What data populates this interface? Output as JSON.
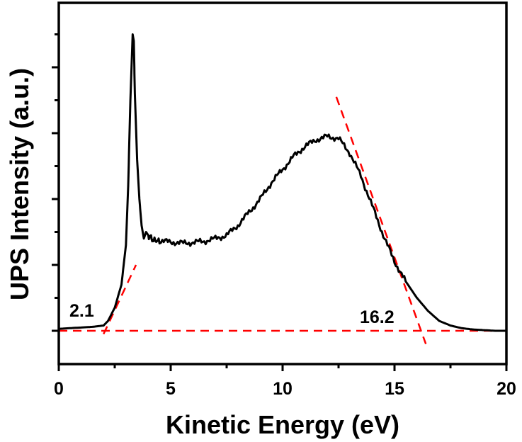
{
  "chart_data": {
    "type": "line",
    "title": "",
    "xlabel": "Kinetic Energy (eV)",
    "ylabel": "UPS Intensity (a.u.)",
    "xlim": [
      0,
      20
    ],
    "ylim": [
      -0.5,
      4.9
    ],
    "x_ticks": [
      0,
      5,
      10,
      15,
      20
    ],
    "x_tick_labels": [
      "0",
      "5",
      "10",
      "15",
      "20"
    ],
    "y_tick_labels_shown": false,
    "grid": false,
    "legend": "none",
    "series": [
      {
        "name": "UPS spectrum",
        "color": "#000000",
        "x": [
          0,
          0.5,
          1,
          1.5,
          2.0,
          2.2,
          2.5,
          2.8,
          3.0,
          3.1,
          3.2,
          3.3,
          3.35,
          3.4,
          3.5,
          3.6,
          3.7,
          3.8,
          3.9,
          4.0,
          4.2,
          4.5,
          5,
          5.5,
          6,
          6.5,
          7,
          7.5,
          8,
          8.5,
          9,
          9.5,
          10,
          10.5,
          11,
          11.5,
          12,
          12.5,
          13,
          13.5,
          14,
          14.5,
          15,
          15.5,
          16,
          16.5,
          17,
          17.5,
          18,
          18.5,
          19,
          19.5,
          20
        ],
        "y": [
          0.03,
          0.04,
          0.05,
          0.06,
          0.08,
          0.15,
          0.35,
          0.7,
          1.3,
          2.2,
          3.5,
          4.5,
          4.4,
          3.6,
          2.6,
          2.0,
          1.6,
          1.4,
          1.5,
          1.45,
          1.38,
          1.36,
          1.35,
          1.33,
          1.34,
          1.36,
          1.4,
          1.45,
          1.6,
          1.8,
          2.0,
          2.25,
          2.45,
          2.65,
          2.8,
          2.9,
          2.95,
          2.92,
          2.7,
          2.35,
          1.9,
          1.45,
          1.05,
          0.75,
          0.5,
          0.3,
          0.15,
          0.08,
          0.04,
          0.02,
          0.01,
          0.0,
          0.0
        ]
      }
    ],
    "fit_lines": [
      {
        "name": "baseline",
        "color": "#ff0000",
        "style": "dashed",
        "x": [
          0,
          20
        ],
        "y": [
          0,
          0
        ]
      },
      {
        "name": "low-energy cutoff fit",
        "color": "#ff0000",
        "style": "dashed",
        "x": [
          2.0,
          3.45
        ],
        "y": [
          -0.05,
          1.0
        ]
      },
      {
        "name": "high-energy cutoff fit",
        "color": "#ff0000",
        "style": "dashed",
        "x": [
          12.4,
          16.4
        ],
        "y": [
          3.55,
          -0.2
        ]
      }
    ],
    "annotations": [
      {
        "text": "2.1",
        "x": 1.1,
        "y": 0.25
      },
      {
        "text": "16.2",
        "x": 14.2,
        "y": 0.15
      }
    ]
  }
}
